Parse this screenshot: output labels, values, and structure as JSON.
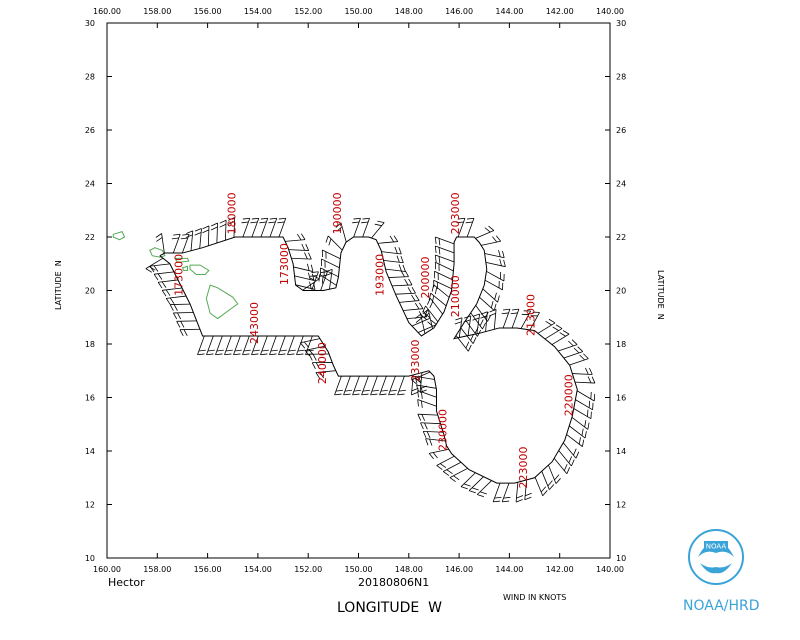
{
  "storm_name": "Hector",
  "flight_id": "20180806N1",
  "x_axis_title": "LONGITUDE  W",
  "y_axis_title_left": "LATITUDE  N",
  "y_axis_title_right": "LATITUDE  N",
  "wind_units": "WIND IN KNOTS",
  "brand": "NOAA/HRD",
  "logo_text": "NOAA",
  "colors": {
    "time_label": "#c00000",
    "coastline": "#55aa55",
    "brand": "#3aa3d8",
    "track": "#000000"
  },
  "map": {
    "lon_range": [
      160,
      140
    ],
    "lat_range": [
      10,
      30
    ],
    "lon_ticks": [
      "160.00",
      "158.00",
      "156.00",
      "154.00",
      "152.00",
      "150.00",
      "148.00",
      "146.00",
      "144.00",
      "142.00",
      "140.00"
    ],
    "lat_ticks": [
      "10",
      "12",
      "14",
      "16",
      "18",
      "20",
      "22",
      "24",
      "26",
      "28",
      "30"
    ],
    "track": [
      [
        157.9,
        21.3
      ],
      [
        157.5,
        21.0
      ],
      [
        156.7,
        19.5
      ],
      [
        156.2,
        18.3
      ],
      [
        151.6,
        18.3
      ],
      [
        151.2,
        17.7
      ],
      [
        151.0,
        17.2
      ],
      [
        150.8,
        16.8
      ],
      [
        148.0,
        16.8
      ],
      [
        147.6,
        16.9
      ],
      [
        147.2,
        17.0
      ],
      [
        147.0,
        16.8
      ],
      [
        146.9,
        16.3
      ],
      [
        146.9,
        15.5
      ],
      [
        146.6,
        14.6
      ],
      [
        146.5,
        14.2
      ],
      [
        146.3,
        13.9
      ],
      [
        145.6,
        13.3
      ],
      [
        144.5,
        12.8
      ],
      [
        143.8,
        12.8
      ],
      [
        143.0,
        13.0
      ],
      [
        142.3,
        13.6
      ],
      [
        141.8,
        14.4
      ],
      [
        141.5,
        15.3
      ],
      [
        141.3,
        16.3
      ],
      [
        141.6,
        17.2
      ],
      [
        142.2,
        17.9
      ],
      [
        143.0,
        18.5
      ],
      [
        143.7,
        18.6
      ],
      [
        144.4,
        18.6
      ],
      [
        145.2,
        18.4
      ],
      [
        146.2,
        18.2
      ],
      [
        145.8,
        18.8
      ],
      [
        145.3,
        19.5
      ],
      [
        145.0,
        20.2
      ],
      [
        144.9,
        20.8
      ],
      [
        145.0,
        21.5
      ],
      [
        145.2,
        21.8
      ],
      [
        145.4,
        22.0
      ],
      [
        145.8,
        22.0
      ],
      [
        146.1,
        22.0
      ],
      [
        146.2,
        21.8
      ],
      [
        146.2,
        21.0
      ],
      [
        146.3,
        20.0
      ],
      [
        146.6,
        19.2
      ],
      [
        147.0,
        18.6
      ],
      [
        147.5,
        18.3
      ],
      [
        148.0,
        18.8
      ],
      [
        148.5,
        19.8
      ],
      [
        148.9,
        20.7
      ],
      [
        149.1,
        21.5
      ],
      [
        149.3,
        21.9
      ],
      [
        149.6,
        22.0
      ],
      [
        150.2,
        22.0
      ],
      [
        150.5,
        21.8
      ],
      [
        150.7,
        21.4
      ],
      [
        150.8,
        20.5
      ],
      [
        150.9,
        20.1
      ],
      [
        151.4,
        20.0
      ],
      [
        152.2,
        20.0
      ],
      [
        152.5,
        20.2
      ],
      [
        152.6,
        21.0
      ],
      [
        152.8,
        21.6
      ],
      [
        153.0,
        22.0
      ],
      [
        154.9,
        22.0
      ],
      [
        156.2,
        21.6
      ],
      [
        157.0,
        21.4
      ],
      [
        157.7,
        21.4
      ],
      [
        157.9,
        21.3
      ]
    ],
    "time_labels": [
      {
        "text": "180000",
        "lon": 154.9,
        "lat": 22.1
      },
      {
        "text": "190000",
        "lon": 150.7,
        "lat": 22.1
      },
      {
        "text": "203000",
        "lon": 146.0,
        "lat": 22.1
      },
      {
        "text": "173000",
        "lon": 152.8,
        "lat": 20.2
      },
      {
        "text": "193000",
        "lon": 149.0,
        "lat": 19.8
      },
      {
        "text": "200000",
        "lon": 147.2,
        "lat": 19.7
      },
      {
        "text": "210000",
        "lon": 146.0,
        "lat": 19.0
      },
      {
        "text": "213000",
        "lon": 143.0,
        "lat": 18.3
      },
      {
        "text": "173000",
        "lon": 157.0,
        "lat": 19.8
      },
      {
        "text": "243000",
        "lon": 154.0,
        "lat": 18.0
      },
      {
        "text": "240000",
        "lon": 151.3,
        "lat": 16.5
      },
      {
        "text": "233000",
        "lon": 147.6,
        "lat": 16.6
      },
      {
        "text": "220000",
        "lon": 141.5,
        "lat": 15.3
      },
      {
        "text": "230000",
        "lon": 146.5,
        "lat": 14.0
      },
      {
        "text": "223000",
        "lon": 143.3,
        "lat": 12.6
      }
    ],
    "islands": [
      [
        [
          158.3,
          21.5
        ],
        [
          158.1,
          21.6
        ],
        [
          157.8,
          21.5
        ],
        [
          157.7,
          21.3
        ],
        [
          157.9,
          21.25
        ],
        [
          158.2,
          21.3
        ],
        [
          158.3,
          21.5
        ]
      ],
      [
        [
          159.75,
          22.1
        ],
        [
          159.4,
          22.2
        ],
        [
          159.3,
          22.0
        ],
        [
          159.5,
          21.9
        ],
        [
          159.75,
          22.0
        ],
        [
          159.75,
          22.1
        ]
      ],
      [
        [
          157.3,
          21.2
        ],
        [
          156.8,
          21.2
        ],
        [
          156.75,
          21.1
        ],
        [
          157.2,
          21.05
        ],
        [
          157.3,
          21.2
        ]
      ],
      [
        [
          156.7,
          20.95
        ],
        [
          156.3,
          20.95
        ],
        [
          155.95,
          20.75
        ],
        [
          156.1,
          20.6
        ],
        [
          156.45,
          20.6
        ],
        [
          156.7,
          20.8
        ],
        [
          156.7,
          20.95
        ]
      ],
      [
        [
          157.0,
          20.85
        ],
        [
          156.8,
          20.9
        ],
        [
          156.8,
          20.75
        ],
        [
          156.95,
          20.75
        ],
        [
          157.0,
          20.85
        ]
      ],
      [
        [
          155.9,
          20.2
        ],
        [
          155.6,
          20.1
        ],
        [
          155.0,
          19.75
        ],
        [
          154.8,
          19.5
        ],
        [
          155.1,
          19.3
        ],
        [
          155.6,
          18.95
        ],
        [
          155.9,
          19.15
        ],
        [
          156.05,
          19.7
        ],
        [
          155.9,
          20.2
        ]
      ]
    ]
  }
}
